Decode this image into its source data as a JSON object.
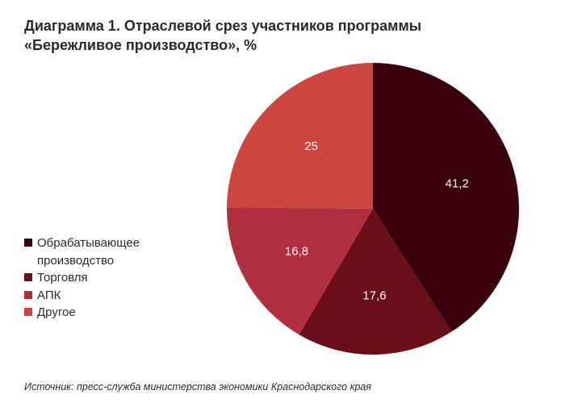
{
  "chart_data": {
    "type": "pie",
    "title": [
      "Диаграмма  1. Отраслевой срез участников программы",
      "«Бережливое производство», %"
    ],
    "categories": [
      "Обрабатывающее производство",
      "Торговля",
      "АПК",
      "Другое"
    ],
    "values": [
      41.2,
      17.6,
      16.8,
      25
    ],
    "value_labels": [
      "41,2",
      "17,6",
      "16,8",
      "25"
    ],
    "colors": [
      "#3a0009",
      "#6a0e1a",
      "#b02f3e",
      "#cf4641"
    ],
    "source": "Источник: пресс-служба министерства экономики Краснодарского края"
  }
}
